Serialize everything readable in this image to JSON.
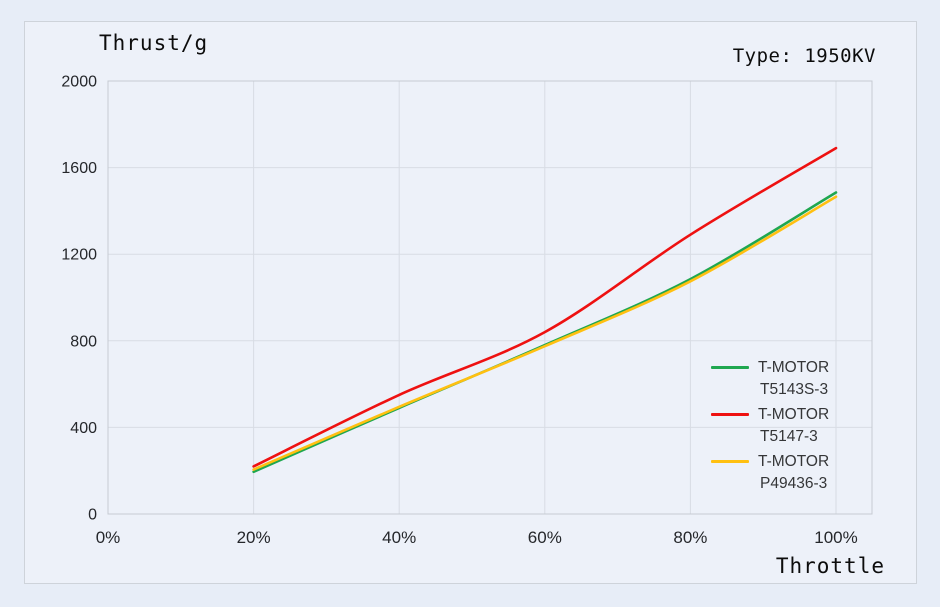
{
  "header": {
    "title": "Thrust/g",
    "type_label": "Type: 1950KV"
  },
  "axes": {
    "x_label": "Throttle",
    "x_ticks": [
      "0%",
      "20%",
      "40%",
      "60%",
      "80%",
      "100%"
    ],
    "y_ticks": [
      "0",
      "400",
      "800",
      "1200",
      "1600",
      "2000"
    ]
  },
  "colors": {
    "background": "#e7edf7",
    "panel": "#edf1f9",
    "panel_border": "#ced3da",
    "plot_border": "#c6cbd2",
    "gridline": "#d8dce4",
    "series_green": "#1fa750",
    "series_red": "#ee1111",
    "series_yellow": "#ffc011"
  },
  "chart_data": {
    "type": "line",
    "title": "Thrust/g",
    "xlabel": "Throttle",
    "ylabel": "Thrust/g",
    "x": [
      20,
      40,
      60,
      80,
      100
    ],
    "x_tick_values": [
      0,
      20,
      40,
      60,
      80,
      100
    ],
    "y_tick_values": [
      0,
      400,
      800,
      1200,
      1600,
      2000
    ],
    "xlim": [
      0,
      105
    ],
    "ylim": [
      0,
      2000
    ],
    "grid": true,
    "legend_position": "right-inside",
    "draw_order": [
      0,
      2,
      1
    ],
    "series": [
      {
        "name": "T-MOTOR T5143S-3",
        "legend_line1": "T-MOTOR",
        "legend_line2": "T5143S-3",
        "color": "#1fa750",
        "values": [
          195,
          490,
          780,
          1085,
          1485
        ]
      },
      {
        "name": "T-MOTOR T5147-3",
        "legend_line1": "T-MOTOR",
        "legend_line2": "T5147-3",
        "color": "#ee1111",
        "values": [
          220,
          550,
          840,
          1290,
          1690
        ]
      },
      {
        "name": "T-MOTOR P49436-3",
        "legend_line1": "T-MOTOR",
        "legend_line2": "P49436-3",
        "color": "#ffc011",
        "values": [
          205,
          495,
          775,
          1075,
          1465
        ]
      }
    ]
  }
}
